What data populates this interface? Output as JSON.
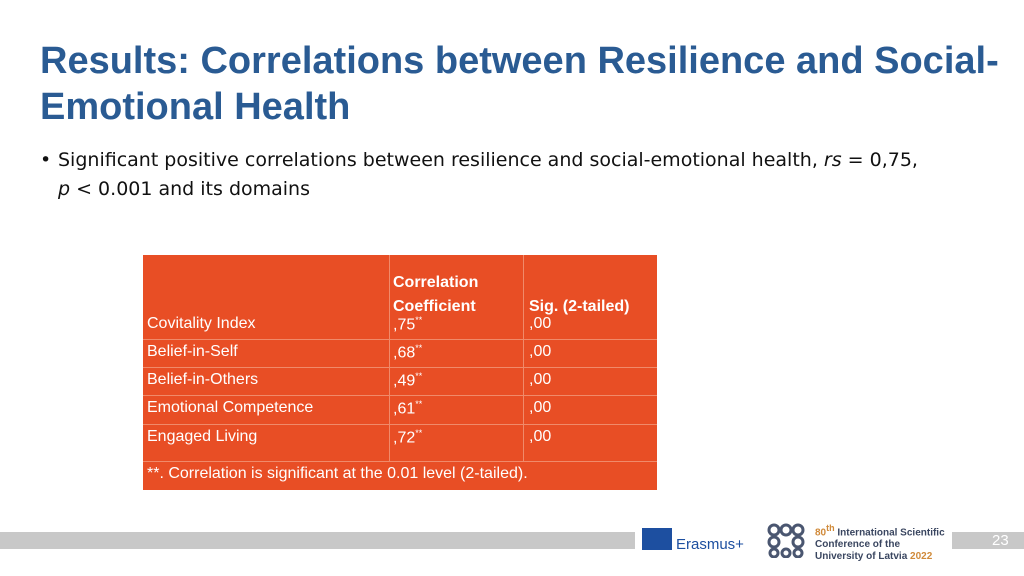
{
  "header": {
    "title": "Results: Correlations between Resilience and Social-Emotional Health"
  },
  "bullet": [
    "Significant positive correlations between resilience and social-emotional health, ",
    "rs",
    " = 0,75,",
    "p",
    " < 0.001 and its domains"
  ],
  "table": {
    "columns": [
      "Correlation Coefficient",
      "Sig. (2-tailed)"
    ],
    "rows": [
      {
        "label": "Covitality Index",
        "coef": ",75",
        "star": "**",
        "sig": ",00"
      },
      {
        "label": "Belief-in-Self",
        "coef": ",68",
        "star": "**",
        "sig": ",00"
      },
      {
        "label": "Belief-in-Others",
        "coef": ",49",
        "star": "**",
        "sig": ",00"
      },
      {
        "label": "Emotional Competence",
        "coef": ",61",
        "star": "**",
        "sig": ",00"
      },
      {
        "label": "Engaged Living",
        "coef": ",72",
        "star": "**",
        "sig": ",00"
      }
    ],
    "note": "**. Correlation is significant at the 0.01 level (2-tailed)."
  },
  "footer": {
    "erasmus": "Erasmus+",
    "conference": [
      "80",
      "th",
      " International Scientific",
      "Conference of the",
      "University of Latvia",
      "2022"
    ],
    "page": "23"
  }
}
